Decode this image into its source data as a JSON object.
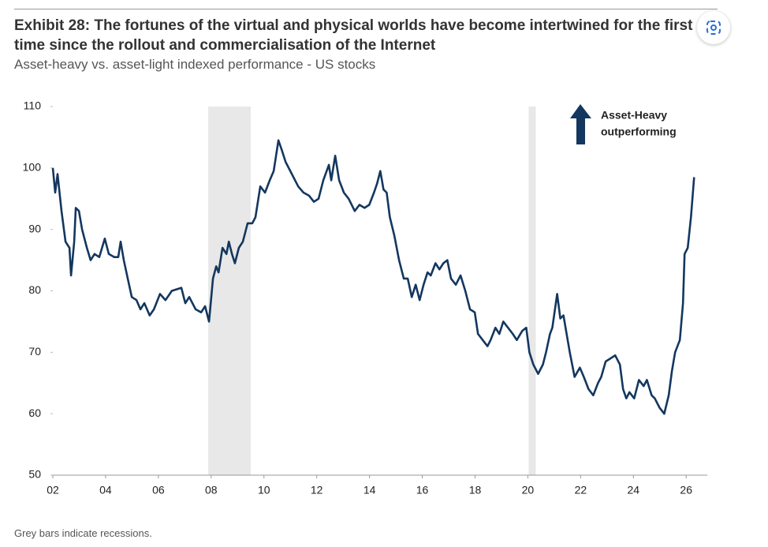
{
  "chart_data": {
    "type": "line",
    "title": "Exhibit 28: The fortunes of the virtual and physical worlds have become intertwined for the first time since the rollout and commercialisation of the Internet",
    "subtitle": "Asset-heavy vs. asset-light indexed performance - US stocks",
    "note": "Grey bars indicate recessions.",
    "annotation": [
      "Asset-Heavy",
      "outperforming"
    ],
    "recessions": [
      [
        2007.89,
        2009.5
      ],
      [
        2020.03,
        2020.3
      ]
    ],
    "recession_color": "#e8e8e8",
    "xlim": [
      2002,
      2026.8
    ],
    "xticks": [
      {
        "value": 2002,
        "label": "02"
      },
      {
        "value": 2004,
        "label": "04"
      },
      {
        "value": 2006,
        "label": "06"
      },
      {
        "value": 2008,
        "label": "08"
      },
      {
        "value": 2010,
        "label": "10"
      },
      {
        "value": 2012,
        "label": "12"
      },
      {
        "value": 2014,
        "label": "14"
      },
      {
        "value": 2016,
        "label": "16"
      },
      {
        "value": 2018,
        "label": "18"
      },
      {
        "value": 2020,
        "label": "20"
      },
      {
        "value": 2022,
        "label": "22"
      },
      {
        "value": 2024,
        "label": "24"
      },
      {
        "value": 2026,
        "label": "26"
      }
    ],
    "ylim": [
      50,
      110
    ],
    "yticks": [
      50,
      60,
      70,
      80,
      90,
      100,
      110
    ],
    "grid": false,
    "color": "#13375f",
    "x": [
      2002.0,
      2002.09,
      2002.18,
      2002.33,
      2002.48,
      2002.63,
      2002.69,
      2002.81,
      2002.87,
      2002.99,
      2003.11,
      2003.29,
      2003.43,
      2003.58,
      2003.76,
      2003.97,
      2004.12,
      2004.33,
      2004.48,
      2004.57,
      2004.69,
      2004.84,
      2004.99,
      2005.17,
      2005.32,
      2005.47,
      2005.67,
      2005.83,
      2006.06,
      2006.27,
      2006.51,
      2006.87,
      2007.02,
      2007.17,
      2007.41,
      2007.62,
      2007.77,
      2007.92,
      2008.07,
      2008.19,
      2008.28,
      2008.43,
      2008.58,
      2008.67,
      2008.79,
      2008.9,
      2009.05,
      2009.2,
      2009.38,
      2009.56,
      2009.68,
      2009.86,
      2010.04,
      2010.22,
      2010.37,
      2010.55,
      2010.67,
      2010.82,
      2011.06,
      2011.3,
      2011.5,
      2011.71,
      2011.89,
      2012.07,
      2012.25,
      2012.46,
      2012.55,
      2012.7,
      2012.85,
      2013.03,
      2013.21,
      2013.44,
      2013.62,
      2013.81,
      2013.99,
      2014.17,
      2014.29,
      2014.41,
      2014.53,
      2014.65,
      2014.77,
      2014.94,
      2015.12,
      2015.3,
      2015.45,
      2015.6,
      2015.75,
      2015.9,
      2016.05,
      2016.2,
      2016.32,
      2016.5,
      2016.65,
      2016.8,
      2016.95,
      2017.09,
      2017.27,
      2017.45,
      2017.63,
      2017.81,
      2017.99,
      2018.11,
      2018.29,
      2018.47,
      2018.59,
      2018.77,
      2018.92,
      2019.07,
      2019.25,
      2019.43,
      2019.58,
      2019.79,
      2019.94,
      2020.06,
      2020.21,
      2020.39,
      2020.57,
      2020.69,
      2020.84,
      2020.93,
      2021.11,
      2021.23,
      2021.35,
      2021.47,
      2021.59,
      2021.77,
      2021.97,
      2022.12,
      2022.3,
      2022.48,
      2022.66,
      2022.78,
      2022.95,
      2023.13,
      2023.31,
      2023.49,
      2023.61,
      2023.73,
      2023.85,
      2024.03,
      2024.21,
      2024.39,
      2024.51,
      2024.69,
      2024.81,
      2024.99,
      2025.17,
      2025.34,
      2025.46,
      2025.58,
      2025.76,
      2025.88,
      2025.94,
      2026.06,
      2026.18,
      2026.3
    ],
    "values": [
      100,
      96,
      99,
      93,
      88,
      87,
      82.5,
      88,
      93.5,
      93,
      90,
      87,
      85,
      86,
      85.5,
      88.5,
      86,
      85.5,
      85.5,
      88,
      85,
      82,
      79,
      78.5,
      77,
      78,
      76,
      77,
      79.5,
      78.5,
      80,
      80.5,
      78,
      79,
      77,
      76.5,
      77.5,
      75,
      82,
      84,
      83,
      87,
      86,
      88,
      86,
      84.5,
      87,
      88,
      91,
      91,
      92,
      97,
      96,
      98,
      99.5,
      104.5,
      103,
      101,
      99,
      97,
      96,
      95.5,
      94.5,
      95,
      98,
      100.5,
      98,
      102,
      98,
      96,
      95,
      93,
      94,
      93.5,
      94,
      96,
      97.5,
      99.5,
      96.5,
      96,
      92,
      89,
      85,
      82,
      82,
      79,
      81,
      78.5,
      81,
      83,
      82.5,
      84.5,
      83.5,
      84.5,
      85,
      82,
      81,
      82.5,
      80,
      77,
      76.5,
      73,
      72,
      71,
      72,
      74,
      73,
      75,
      74,
      73,
      72,
      73.5,
      74,
      70,
      68,
      66.5,
      68,
      70,
      73,
      74,
      79.5,
      75.5,
      76,
      73,
      70,
      66,
      67.5,
      66,
      64,
      63,
      65,
      66,
      68.5,
      69,
      69.5,
      68,
      64,
      62.5,
      63.5,
      62.5,
      65.5,
      64.5,
      65.5,
      63,
      62.5,
      61,
      60,
      63,
      67,
      70,
      72,
      78,
      86,
      87,
      92,
      98.5
    ]
  }
}
